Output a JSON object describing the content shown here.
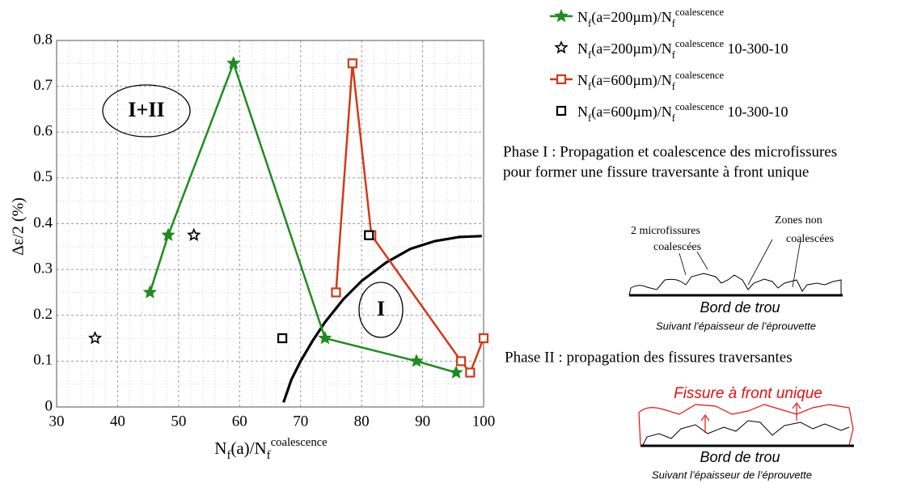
{
  "chart_data": {
    "type": "line",
    "x_label": "N_{f}(a)/N_{f}^{coalescence}",
    "y_label": "Δε/2 (%)",
    "xlim": [
      30,
      100
    ],
    "xticks": [
      30,
      40,
      50,
      60,
      70,
      80,
      90,
      100
    ],
    "ylim": [
      0,
      0.8
    ],
    "yticks": [
      0,
      0.1,
      0.2,
      0.3,
      0.4,
      0.5,
      0.6,
      0.7,
      0.8
    ],
    "grid": true,
    "series": [
      {
        "name": "N_{f}(a=200µm)/N_{f}^{coalescence}",
        "color": "#1e8c1e",
        "line": true,
        "marker": "star",
        "marker_fill": "#1e8c1e",
        "x": [
          45.3,
          48.3,
          59,
          74,
          89,
          95.5
        ],
        "values": [
          0.25,
          0.375,
          0.75,
          0.15,
          0.1,
          0.075
        ]
      },
      {
        "name": "N_{f}(a=200µm)/N_{f}^{coalescence} 10-300-10",
        "color": "#000000",
        "line": false,
        "marker": "star",
        "marker_fill": "#ffffff",
        "x": [
          36.3,
          52.5
        ],
        "values": [
          0.15,
          0.375
        ]
      },
      {
        "name": "N_{f}(a=600µm)/N_{f}^{coalescence}",
        "color": "#d03a18",
        "line": true,
        "marker": "square",
        "marker_fill": "#ffffff",
        "x": [
          75.8,
          78.5,
          81.6,
          96.3,
          97.8,
          100
        ],
        "values": [
          0.25,
          0.75,
          0.375,
          0.1,
          0.075,
          0.15
        ]
      },
      {
        "name": "N_{f}(a=600µm)/N_{f}^{coalescence} 10-300-10",
        "color": "#000000",
        "line": false,
        "marker": "square",
        "marker_fill": "#ffffff",
        "x": [
          67,
          81.2
        ],
        "values": [
          0.15,
          0.375
        ]
      }
    ],
    "curve": {
      "color": "#000000",
      "x": [
        67.2,
        68.5,
        70,
        72,
        74,
        77,
        80,
        84,
        88,
        92,
        96,
        99.7
      ],
      "values": [
        0.01,
        0.06,
        0.1,
        0.145,
        0.185,
        0.235,
        0.275,
        0.315,
        0.345,
        0.362,
        0.371,
        0.373
      ]
    },
    "annotations": [
      "I+II",
      "I"
    ]
  },
  "panel": {
    "phase1": [
      "Phase I : Propagation et coalescence des microfissures",
      "pour former une fissure traversante à front unique"
    ],
    "diagram1": {
      "left_label": [
        "2 microfissures",
        "coalescées"
      ],
      "right_label": [
        "Zones non",
        "coalescées"
      ],
      "base": "Bord de trou",
      "caption": "Suivant l’épaisseur de l’éprouvette"
    },
    "phase2": "Phase II : propagation des fissures traversantes",
    "diagram2": {
      "front": "Fissure à front unique",
      "base": "Bord de trou",
      "caption": "Suivant l’épaisseur de l’éprouvette"
    }
  }
}
